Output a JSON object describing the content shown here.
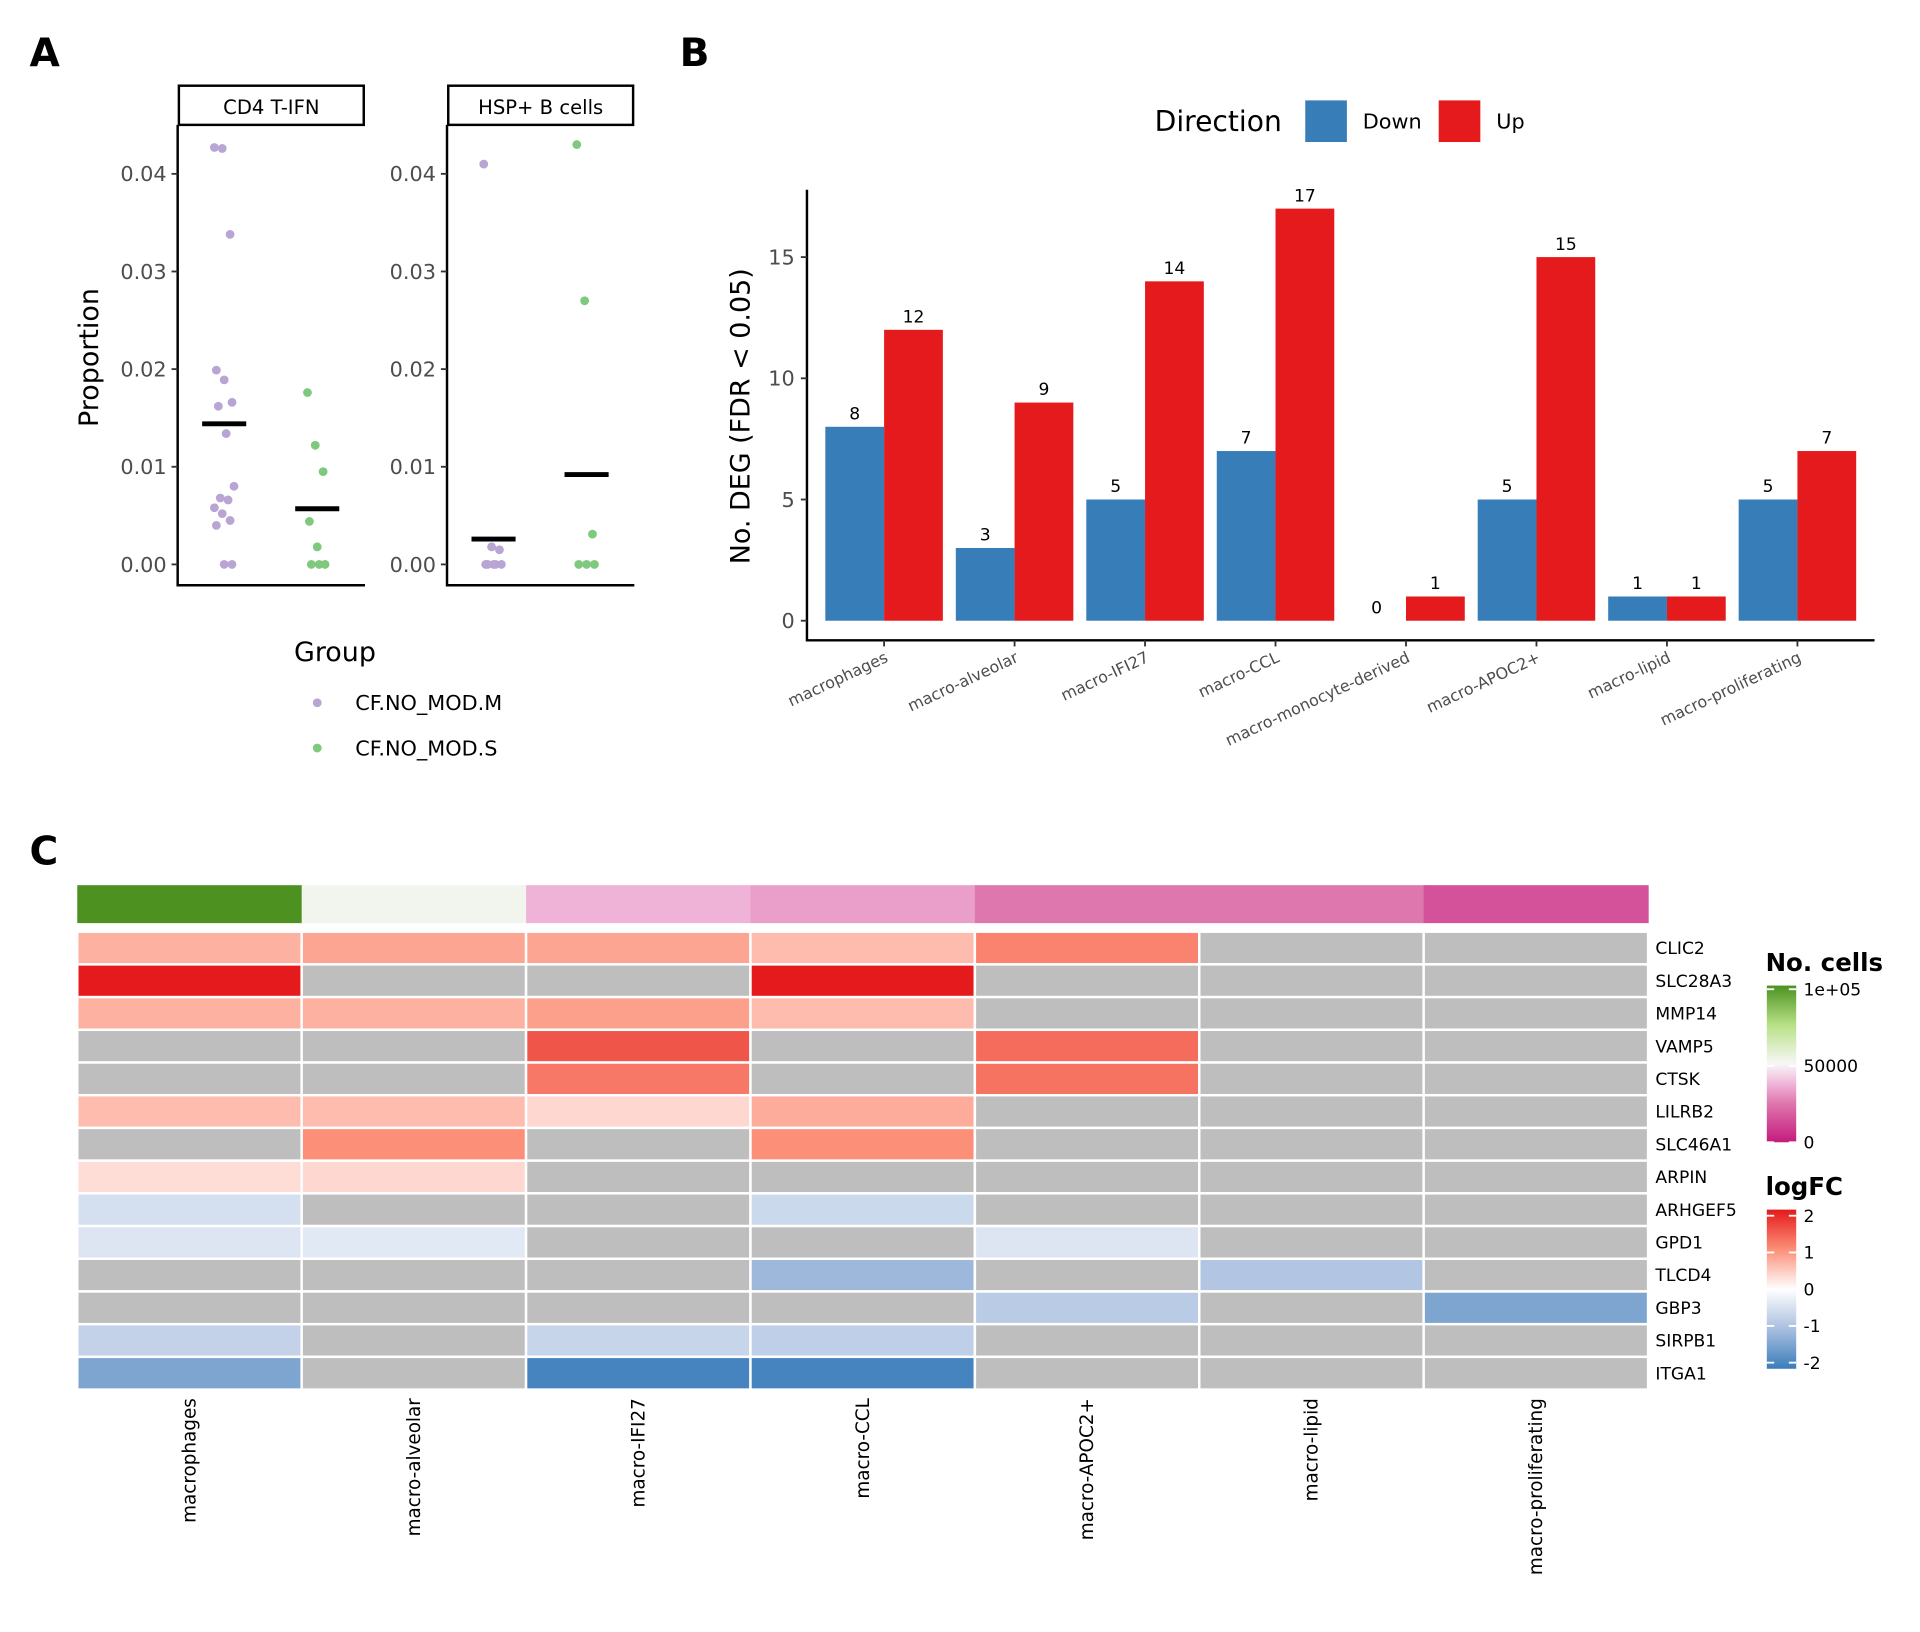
{
  "panel_labels": {
    "a": "A",
    "b": "B",
    "c": "C"
  },
  "chart_data": [
    {
      "type": "scatter",
      "panel": "A",
      "ylabel": "Proportion",
      "ylim": [
        0,
        0.044
      ],
      "yticks": [
        "0.00",
        "0.01",
        "0.02",
        "0.03",
        "0.04"
      ],
      "ytick_values": [
        0,
        0.01,
        0.02,
        0.03,
        0.04
      ],
      "grid": false,
      "legend": {
        "title": "Group",
        "placement": "bottom-left",
        "items": [
          {
            "label": "CF.NO_MOD.M",
            "color": "#b9a5d3"
          },
          {
            "label": "CF.NO_MOD.S",
            "color": "#7fc97f"
          }
        ]
      },
      "facets": [
        {
          "title": "CD4 T-IFN",
          "groups": [
            {
              "group": "CF.NO_MOD.M",
              "mean": 0.0144,
              "values": [
                0.0427,
                0.0426,
                0.0338,
                0.0199,
                0.0189,
                0.0166,
                0.0162,
                0.0134,
                0.008,
                0.0068,
                0.0066,
                0.0058,
                0.0052,
                0.0045,
                0.004,
                0,
                0
              ]
            },
            {
              "group": "CF.NO_MOD.S",
              "mean": 0.0057,
              "values": [
                0.0176,
                0.0122,
                0.0095,
                0.0044,
                0.0018,
                0,
                0,
                0
              ]
            }
          ]
        },
        {
          "title": "HSP+ B cells",
          "groups": [
            {
              "group": "CF.NO_MOD.M",
              "mean": 0.0026,
              "values": [
                0.041,
                0.0018,
                0.0015,
                0,
                0,
                0,
                0,
                0
              ]
            },
            {
              "group": "CF.NO_MOD.S",
              "mean": 0.0092,
              "values": [
                0.043,
                0.027,
                0.0031,
                0,
                0,
                0
              ]
            }
          ]
        }
      ]
    },
    {
      "type": "bar",
      "panel": "B",
      "ylabel": "No. DEG (FDR < 0.05)",
      "ylim": [
        0,
        17.8
      ],
      "yticks": [
        "0",
        "5",
        "10",
        "15"
      ],
      "ytick_values": [
        0,
        5,
        10,
        15
      ],
      "grid": false,
      "legend": {
        "title": "Direction",
        "placement": "top"
      },
      "categories": [
        "macrophages",
        "macro-alveolar",
        "macro-IFI27",
        "macro-CCL",
        "macro-monocyte-derived",
        "macro-APOC2+",
        "macro-lipid",
        "macro-proliferating"
      ],
      "series": [
        {
          "name": "Down",
          "color": "#377eb8",
          "values": [
            8,
            3,
            5,
            7,
            0,
            5,
            1,
            5
          ]
        },
        {
          "name": "Up",
          "color": "#e41a1c",
          "values": [
            12,
            9,
            14,
            17,
            1,
            15,
            1,
            7
          ]
        }
      ]
    },
    {
      "type": "heatmap",
      "panel": "C",
      "columns": [
        "macrophages",
        "macro-alveolar",
        "macro-IFI27",
        "macro-CCL",
        "macro-APOC2+",
        "macro-lipid",
        "macro-proliferating"
      ],
      "rows": [
        "CLIC2",
        "SLC28A3",
        "MMP14",
        "VAMP5",
        "CTSK",
        "LILRB2",
        "SLC46A1",
        "ARPIN",
        "ARHGEF5",
        "GPD1",
        "TLCD4",
        "GBP3",
        "SIRPB1",
        "ITGA1"
      ],
      "missing_color": "#bebebe",
      "values": [
        [
          0.7,
          0.8,
          0.8,
          0.6,
          1.1,
          null,
          null
        ],
        [
          2.0,
          null,
          null,
          2.0,
          null,
          null,
          null
        ],
        [
          0.7,
          0.7,
          0.85,
          0.6,
          null,
          null,
          null
        ],
        [
          null,
          null,
          1.5,
          null,
          1.3,
          null,
          null
        ],
        [
          null,
          null,
          1.2,
          null,
          1.25,
          null,
          null
        ],
        [
          0.6,
          0.6,
          0.35,
          0.75,
          null,
          null,
          null
        ],
        [
          null,
          1.0,
          null,
          1.0,
          null,
          null,
          null
        ],
        [
          0.3,
          0.35,
          null,
          null,
          null,
          null,
          null
        ],
        [
          -0.5,
          null,
          null,
          -0.6,
          null,
          null,
          null
        ],
        [
          -0.4,
          -0.35,
          null,
          null,
          -0.4,
          null,
          null
        ],
        [
          null,
          null,
          null,
          -1.1,
          null,
          -0.9,
          null
        ],
        [
          null,
          null,
          null,
          null,
          -0.8,
          null,
          -1.4
        ],
        [
          -0.7,
          null,
          -0.65,
          -0.75,
          null,
          null,
          null
        ],
        [
          -1.4,
          null,
          -1.9,
          -1.9,
          null,
          null,
          null
        ]
      ],
      "annotation": {
        "title": "No. cells",
        "values": [
          100000,
          52000,
          37000,
          33000,
          25000,
          25000,
          15000
        ],
        "ticks": [
          "1e+05",
          "50000",
          "0"
        ],
        "tick_values": [
          100000,
          50000,
          0
        ],
        "colors": [
          "#c51b7d",
          "#f7f7f7",
          "#4d9221"
        ]
      },
      "color_legend": {
        "title": "logFC",
        "ticks": [
          "2",
          "1",
          "0",
          "-1",
          "-2"
        ],
        "tick_values": [
          2,
          1,
          0,
          -1,
          -2
        ],
        "colors": [
          "#3a7dba",
          "#ffffff",
          "#e41a1c"
        ]
      }
    }
  ]
}
